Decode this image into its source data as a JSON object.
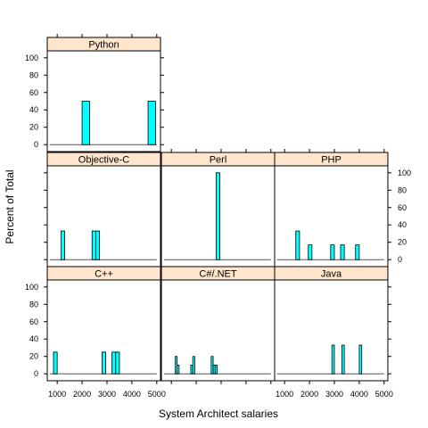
{
  "chart_data": {
    "type": "bar",
    "xlabel": "System Architect salaries",
    "ylabel": "Percent of Total",
    "xlim": [
      600,
      5150
    ],
    "ylim": [
      -8,
      108
    ],
    "x_ticks": [
      1000,
      2000,
      3000,
      4000,
      5000
    ],
    "x_tick_labels": [
      "1000",
      "2000",
      "3000",
      "4000",
      "5000"
    ],
    "y_ticks": [
      0,
      20,
      40,
      60,
      80,
      100
    ],
    "y_tick_labels": [
      "0",
      "20",
      "40",
      "60",
      "80",
      "100"
    ],
    "colors": {
      "bar_fill": "#00ffff",
      "bar_stroke": "#000000",
      "strip_fill": "#ffe5cc",
      "baseline": "#555555"
    },
    "panels": [
      {
        "title": "Python",
        "bars": [
          {
            "x0": 2000,
            "x1": 2300,
            "value": 50
          },
          {
            "x0": 4650,
            "x1": 4950,
            "value": 50
          }
        ]
      },
      {
        "title": "Objective-C",
        "bars": [
          {
            "x0": 1150,
            "x1": 1300,
            "value": 33
          },
          {
            "x0": 2400,
            "x1": 2550,
            "value": 33
          },
          {
            "x0": 2550,
            "x1": 2700,
            "value": 33
          }
        ]
      },
      {
        "title": "Perl",
        "bars": [
          {
            "x0": 2800,
            "x1": 2950,
            "value": 100
          }
        ]
      },
      {
        "title": "PHP",
        "bars": [
          {
            "x0": 1450,
            "x1": 1600,
            "value": 33
          },
          {
            "x0": 1950,
            "x1": 2100,
            "value": 17
          },
          {
            "x0": 2850,
            "x1": 3000,
            "value": 17
          },
          {
            "x0": 3250,
            "x1": 3400,
            "value": 17
          },
          {
            "x0": 3850,
            "x1": 4000,
            "value": 17
          }
        ]
      },
      {
        "title": "C++",
        "bars": [
          {
            "x0": 850,
            "x1": 1000,
            "value": 25
          },
          {
            "x0": 2800,
            "x1": 2950,
            "value": 25
          },
          {
            "x0": 3200,
            "x1": 3350,
            "value": 25
          },
          {
            "x0": 3350,
            "x1": 3500,
            "value": 25
          }
        ]
      },
      {
        "title": "C#/.NET",
        "bars": [
          {
            "x0": 1150,
            "x1": 1230,
            "value": 20
          },
          {
            "x0": 1230,
            "x1": 1310,
            "value": 10
          },
          {
            "x0": 1780,
            "x1": 1860,
            "value": 10
          },
          {
            "x0": 1860,
            "x1": 1940,
            "value": 20
          },
          {
            "x0": 2600,
            "x1": 2680,
            "value": 20
          },
          {
            "x0": 2680,
            "x1": 2760,
            "value": 10
          },
          {
            "x0": 2760,
            "x1": 2840,
            "value": 10
          }
        ]
      },
      {
        "title": "Java",
        "bars": [
          {
            "x0": 2900,
            "x1": 3000,
            "value": 33
          },
          {
            "x0": 3300,
            "x1": 3400,
            "value": 33
          },
          {
            "x0": 4000,
            "x1": 4100,
            "value": 33
          }
        ]
      }
    ]
  }
}
